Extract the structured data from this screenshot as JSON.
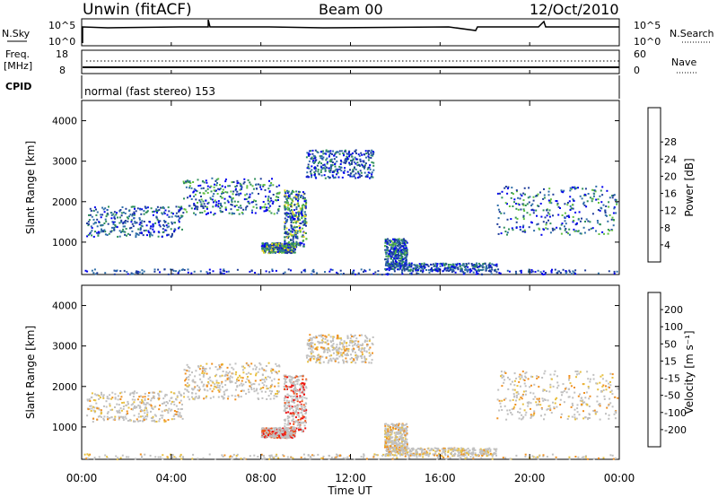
{
  "header": {
    "station": "Unwin (fitACF)",
    "beam": "Beam 00",
    "date": "12/Oct/2010"
  },
  "panels": {
    "nsky": {
      "label": "N.Sky",
      "right_label": "N.Search",
      "ticks": [
        "10^5",
        "10^0"
      ]
    },
    "freq": {
      "label_line1": "Freq.",
      "label_line2": "[MHz]",
      "left_ticks": [
        "18",
        "8"
      ],
      "right_label": "Nave",
      "right_ticks": [
        "60",
        "0"
      ]
    },
    "cpid": {
      "label": "CPID",
      "mode": "normal (fast stereo) 153"
    }
  },
  "chart_data": [
    {
      "type": "heatmap",
      "name": "power",
      "xlabel": "Time UT",
      "ylabel": "Slant Range [km]",
      "xlim": [
        0,
        24
      ],
      "ylim": [
        200,
        4500
      ],
      "xticks": [
        "00:00",
        "04:00",
        "08:00",
        "12:00",
        "16:00",
        "20:00",
        "00:00"
      ],
      "yticks": [
        "1000",
        "2000",
        "3000",
        "4000"
      ],
      "colorbar": {
        "label": "Power [dB]",
        "ticks": [
          "4",
          "8",
          "12",
          "16",
          "20",
          "24",
          "28"
        ],
        "colors": [
          "#0000ee",
          "#1e3c9a",
          "#2f6ea8",
          "#2f8f5a",
          "#5fbf3f",
          "#e0d020",
          "#f5a000",
          "#f06010",
          "#ee1010"
        ]
      }
    },
    {
      "type": "heatmap",
      "name": "velocity",
      "xlabel": "Time UT",
      "ylabel": "Slant Range [km]",
      "xlim": [
        0,
        24
      ],
      "ylim": [
        200,
        4500
      ],
      "xticks": [
        "00:00",
        "04:00",
        "08:00",
        "12:00",
        "16:00",
        "20:00",
        "00:00"
      ],
      "yticks": [
        "1000",
        "2000",
        "3000",
        "4000"
      ],
      "colorbar": {
        "label": "Velocity [m s⁻¹]",
        "ticks": [
          "200",
          "100",
          "50",
          "15",
          "-15",
          "-50",
          "-100",
          "-200"
        ],
        "colors": [
          "#1a2fd0",
          "#2a55a0",
          "#2e8a5a",
          "#50c030",
          "#c0c0c0",
          "#e8c040",
          "#f09020",
          "#f05010",
          "#ee1010"
        ]
      }
    }
  ]
}
